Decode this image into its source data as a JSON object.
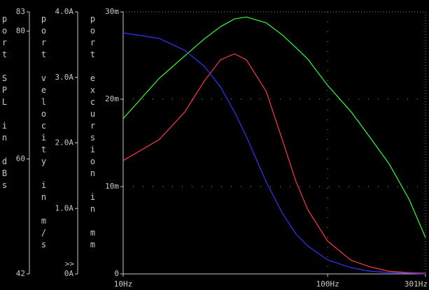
{
  "chart_data": {
    "type": "line",
    "log_x": true,
    "x": [
      10,
      15,
      20,
      25,
      30,
      35,
      40,
      50,
      60,
      70,
      80,
      100,
      130,
      160,
      200,
      250,
      301
    ],
    "xlim": [
      10,
      301
    ],
    "xticks": [
      {
        "value": 10,
        "label": "10Hz"
      },
      {
        "value": 100,
        "label": "100Hz"
      },
      {
        "value": 301,
        "label": "301Hz"
      }
    ],
    "ylabel": "port SPL in dBs",
    "ylim": [
      42,
      83
    ],
    "yticks": [
      42,
      60,
      80,
      83
    ],
    "y2label": "port velocity in m/s",
    "y2lim": [
      0,
      4
    ],
    "y2ticks": [
      {
        "value": 0,
        "label": "0A"
      },
      {
        "value": 1,
        "label": "1.0A"
      },
      {
        "value": 2,
        "label": "2.0A"
      },
      {
        "value": 3,
        "label": "3.0A"
      },
      {
        "value": 4,
        "label": "4.0A"
      }
    ],
    "y3label": "port excursion in mm",
    "y3lim": [
      0,
      0.03
    ],
    "y3ticks": [
      0,
      {
        "value": 0.01,
        "label": "10m"
      },
      {
        "value": 0.02,
        "label": "20m"
      },
      {
        "value": 0.03,
        "label": "30m"
      }
    ],
    "axis_marker": ">>",
    "grid": true,
    "series": [
      {
        "color": "#33ff33",
        "axis": "y",
        "values": [
          66.3,
          72.6,
          76.1,
          78.8,
          80.7,
          81.9,
          82.2,
          81.3,
          79.4,
          77.4,
          75.6,
          71.5,
          67.4,
          63.5,
          59.2,
          53.7,
          47.7
        ]
      },
      {
        "color": "#ff3b3b",
        "axis": "y2",
        "values": [
          1.73,
          2.05,
          2.47,
          2.95,
          3.27,
          3.36,
          3.27,
          2.79,
          2.05,
          1.41,
          0.98,
          0.5,
          0.21,
          0.11,
          0.04,
          0.02,
          0.01
        ]
      },
      {
        "color": "#3333ff",
        "axis": "y3",
        "values": [
          0.0276,
          0.02696,
          0.0256,
          0.02376,
          0.02136,
          0.01856,
          0.01576,
          0.01056,
          0.00696,
          0.00456,
          0.0032,
          0.0016,
          0.00072,
          0.00032,
          0.00016,
          8e-05,
          0
        ]
      }
    ]
  }
}
